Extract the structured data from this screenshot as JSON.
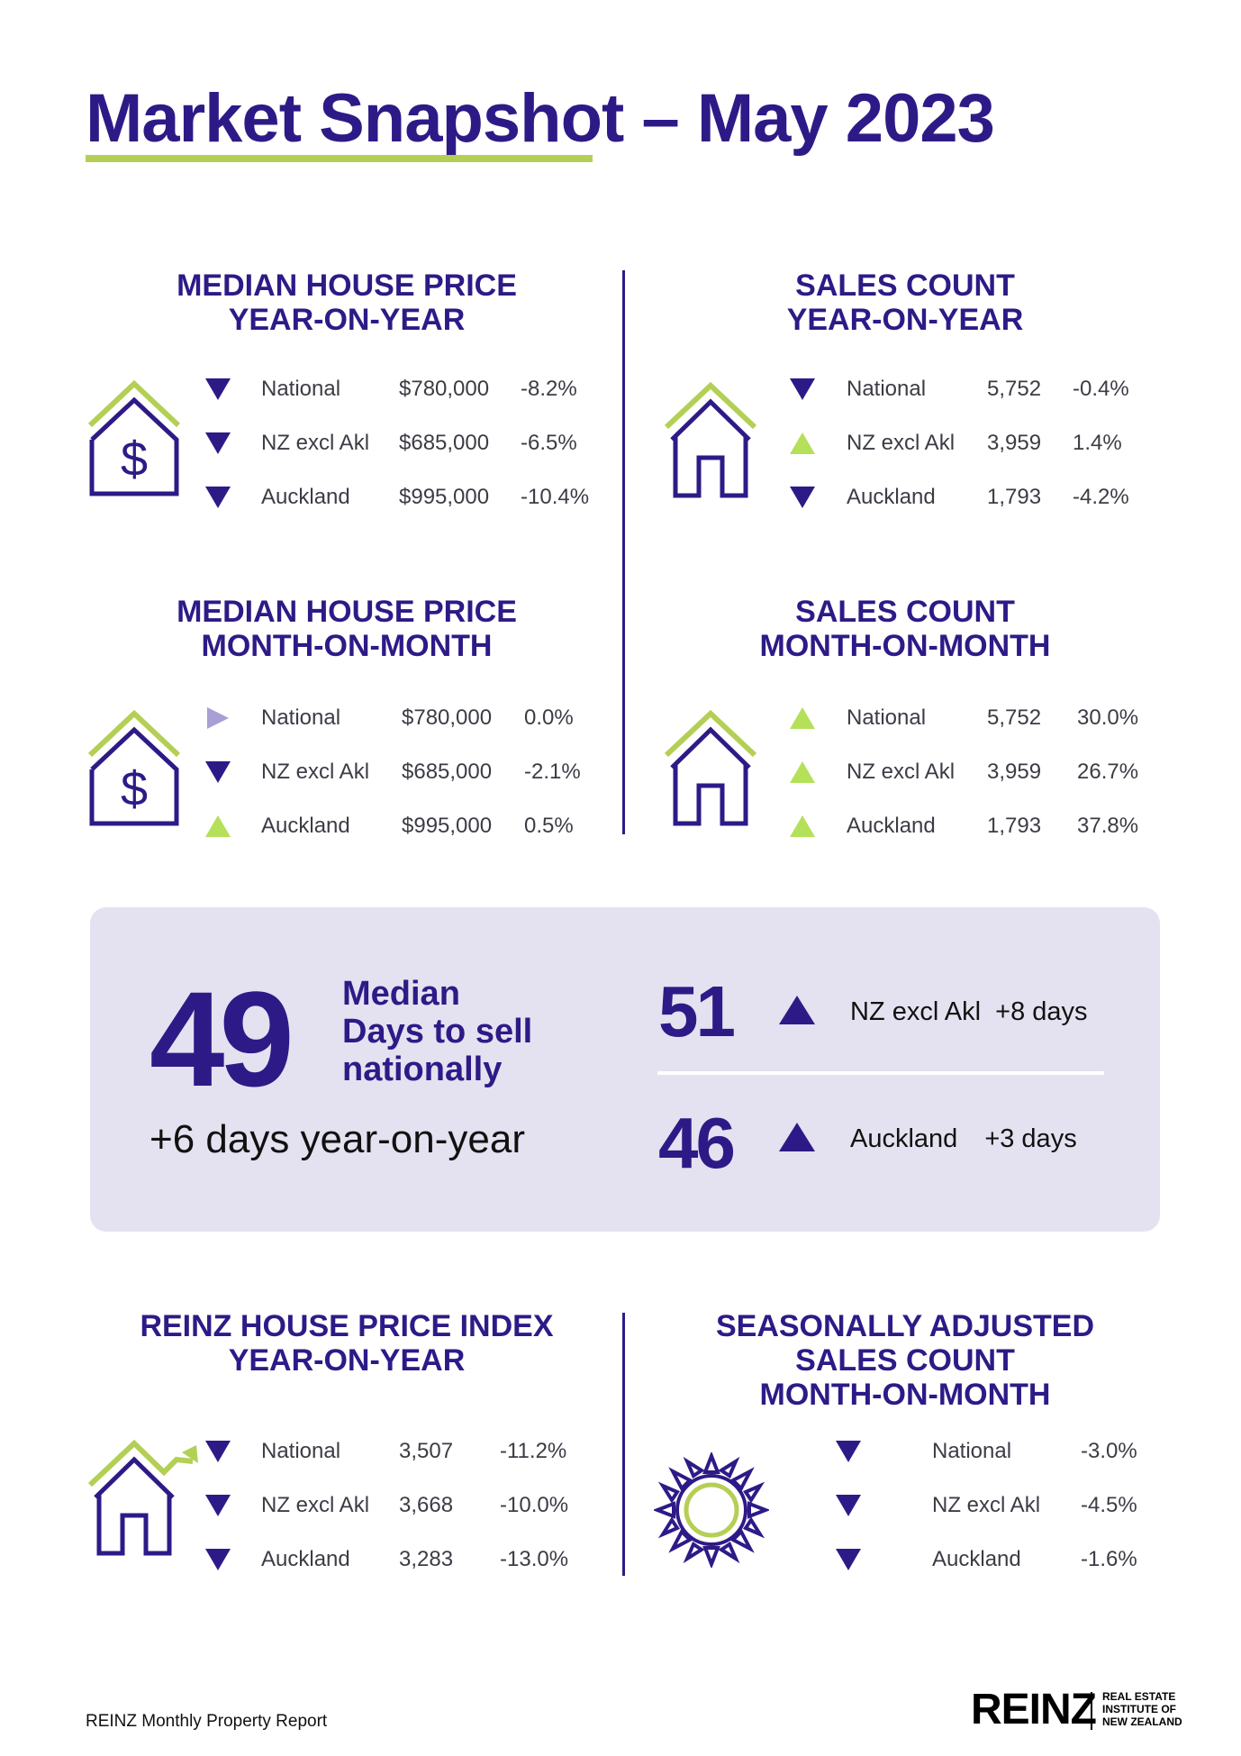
{
  "title": "Market Snapshot – May 2023",
  "colors": {
    "navy": "#2e1a87",
    "green": "#b4cf55",
    "lavender": "#a89fd6",
    "panel": "#e4e2f0"
  },
  "sections": {
    "mhp_yoy": {
      "title": [
        "MEDIAN HOUSE PRICE",
        "YEAR-ON-YEAR"
      ],
      "icon": "house-dollar-icon",
      "rows": [
        {
          "dir": "down",
          "region": "National",
          "value": "$780,000",
          "change": "-8.2%"
        },
        {
          "dir": "down",
          "region": "NZ excl Akl",
          "value": "$685,000",
          "change": "-6.5%"
        },
        {
          "dir": "down",
          "region": "Auckland",
          "value": "$995,000",
          "change": "-10.4%"
        }
      ]
    },
    "sc_yoy": {
      "title": [
        "SALES COUNT",
        "YEAR-ON-YEAR"
      ],
      "icon": "house-icon",
      "rows": [
        {
          "dir": "down",
          "region": "National",
          "value": "5,752",
          "change": "-0.4%"
        },
        {
          "dir": "up-green",
          "region": "NZ excl Akl",
          "value": "3,959",
          "change": "1.4%"
        },
        {
          "dir": "down",
          "region": "Auckland",
          "value": "1,793",
          "change": "-4.2%"
        }
      ]
    },
    "mhp_mom": {
      "title": [
        "MEDIAN HOUSE PRICE",
        "MONTH-ON-MONTH"
      ],
      "icon": "house-dollar-icon",
      "rows": [
        {
          "dir": "flat",
          "region": "National",
          "value": "$780,000",
          "change": "0.0%"
        },
        {
          "dir": "down",
          "region": "NZ excl Akl",
          "value": "$685,000",
          "change": "-2.1%"
        },
        {
          "dir": "up-green",
          "region": "Auckland",
          "value": "$995,000",
          "change": "0.5%"
        }
      ]
    },
    "sc_mom": {
      "title": [
        "SALES COUNT",
        "MONTH-ON-MONTH"
      ],
      "icon": "house-icon",
      "rows": [
        {
          "dir": "up-green",
          "region": "National",
          "value": "5,752",
          "change": "30.0%"
        },
        {
          "dir": "up-green",
          "region": "NZ excl Akl",
          "value": "3,959",
          "change": "26.7%"
        },
        {
          "dir": "up-green",
          "region": "Auckland",
          "value": "1,793",
          "change": "37.8%"
        }
      ]
    },
    "hpi_yoy": {
      "title": [
        "REINZ HOUSE PRICE INDEX",
        "YEAR-ON-YEAR"
      ],
      "icon": "house-trend-icon",
      "rows": [
        {
          "dir": "down",
          "region": "National",
          "value": "3,507",
          "change": "-11.2%"
        },
        {
          "dir": "down",
          "region": "NZ excl Akl",
          "value": "3,668",
          "change": "-10.0%"
        },
        {
          "dir": "down",
          "region": "Auckland",
          "value": "3,283",
          "change": "-13.0%"
        }
      ]
    },
    "sa_mom": {
      "title": [
        "SEASONALLY ADJUSTED",
        "SALES COUNT",
        "MONTH-ON-MONTH"
      ],
      "icon": "sun-icon",
      "rows": [
        {
          "dir": "down",
          "region": "National",
          "change": "-3.0%"
        },
        {
          "dir": "down",
          "region": "NZ excl Akl",
          "change": "-4.5%"
        },
        {
          "dir": "down",
          "region": "Auckland",
          "change": "-1.6%"
        }
      ]
    }
  },
  "days": {
    "national_value": "49",
    "national_label": [
      "Median",
      "Days to sell",
      "nationally"
    ],
    "national_change": "+6 days year-on-year",
    "items": [
      {
        "value": "51",
        "dir": "up",
        "region": "NZ excl Akl",
        "change": "+8 days"
      },
      {
        "value": "46",
        "dir": "up",
        "region": "Auckland",
        "change": "+3 days"
      }
    ]
  },
  "footer": {
    "text": "REINZ Monthly Property Report"
  },
  "logo": {
    "name": "REINZ",
    "subtitle": [
      "REAL ESTATE",
      "INSTITUTE OF",
      "NEW ZEALAND"
    ]
  }
}
